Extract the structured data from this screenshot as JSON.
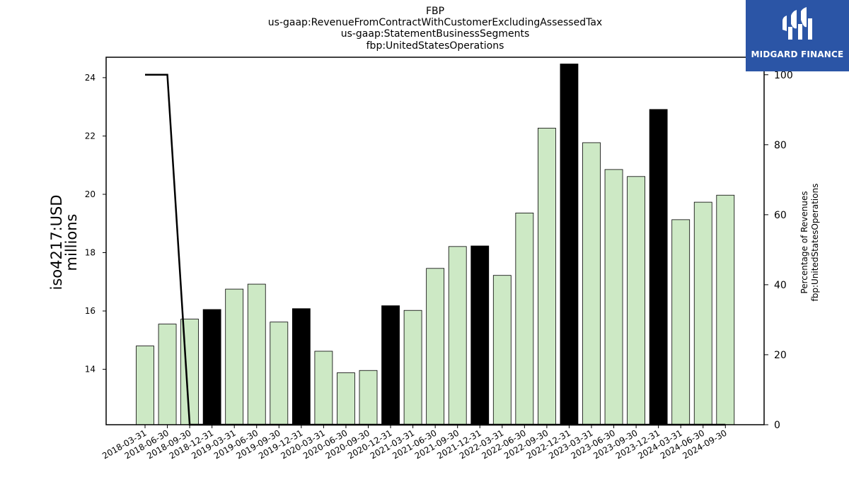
{
  "header": {
    "title_lines": [
      "FBP",
      "us-gaap:RevenueFromContractWithCustomerExcludingAssessedTax",
      "us-gaap:StatementBusinessSegments",
      "fbp:UnitedStatesOperations"
    ]
  },
  "logo": {
    "text": "MIDGARD FINANCE",
    "background": "#2b55a6"
  },
  "chart_data": {
    "type": "bar",
    "categories": [
      "2018-03-31",
      "2018-06-30",
      "2018-09-30",
      "2018-12-31",
      "2019-03-31",
      "2019-06-30",
      "2019-09-30",
      "2019-12-31",
      "2020-03-31",
      "2020-06-30",
      "2020-09-30",
      "2020-12-31",
      "2021-03-31",
      "2021-06-30",
      "2021-09-30",
      "2021-12-31",
      "2022-03-31",
      "2022-06-30",
      "2022-09-30",
      "2022-12-31",
      "2023-03-31",
      "2023-06-30",
      "2023-09-30",
      "2023-12-31",
      "2024-03-31",
      "2024-06-30",
      "2024-09-30"
    ],
    "series": [
      {
        "axis": "left",
        "kind": "bar",
        "values": [
          14.8,
          15.55,
          15.72,
          16.05,
          16.75,
          16.92,
          15.62,
          16.08,
          14.62,
          13.88,
          13.96,
          16.18,
          16.02,
          17.46,
          18.21,
          18.23,
          17.22,
          19.36,
          22.27,
          24.47,
          21.77,
          20.85,
          20.61,
          22.91,
          19.13,
          19.73,
          19.97
        ],
        "highlight": [
          false,
          false,
          false,
          true,
          false,
          false,
          false,
          true,
          false,
          false,
          false,
          true,
          false,
          false,
          false,
          true,
          false,
          false,
          false,
          true,
          false,
          false,
          false,
          true,
          false,
          false,
          false
        ],
        "bar_color": "#cde9c5",
        "highlight_color": "#000000"
      },
      {
        "axis": "right",
        "kind": "line",
        "values": [
          100,
          100,
          0,
          0,
          0,
          0,
          0,
          0,
          0,
          0,
          0,
          0,
          0,
          0,
          0,
          0,
          0,
          0,
          0,
          0,
          0,
          0,
          0,
          0,
          0,
          0,
          0
        ],
        "color": "#000000"
      }
    ],
    "ylabel_left": [
      "iso4217:USD",
      "millions"
    ],
    "ylabel_right": [
      "Percentage of Revenues",
      "fbp:UnitedStatesOperations"
    ],
    "ylim_left": [
      12.1,
      24.7
    ],
    "yticks_left": [
      "14",
      "16",
      "18",
      "20",
      "22",
      "24"
    ],
    "ylim_right": [
      0,
      105
    ],
    "yticks_right": [
      "0",
      "20",
      "40",
      "60",
      "80",
      "100"
    ],
    "grid": false,
    "legend": "none"
  }
}
